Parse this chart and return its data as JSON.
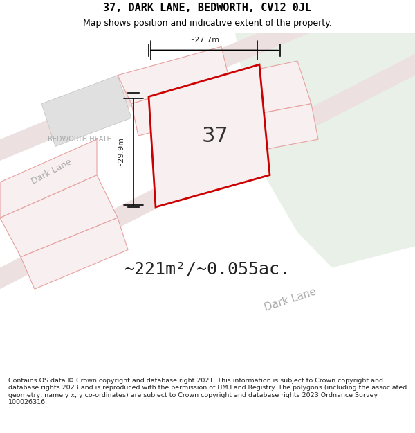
{
  "title_line1": "37, DARK LANE, BEDWORTH, CV12 0JL",
  "title_line2": "Map shows position and indicative extent of the property.",
  "area_text": "~221m²/~0.055ac.",
  "label_37": "37",
  "label_width": "~27.7m",
  "label_height": "~29.9m",
  "label_dark_lane_diag": "Dark Lane",
  "label_dark_lane_left": "Dark Lane",
  "label_bedworth": "BEDWORTH HEATH",
  "footer_text": "Contains OS data © Crown copyright and database right 2021. This information is subject to Crown copyright and database rights 2023 and is reproduced with the permission of HM Land Registry. The polygons (including the associated geometry, namely x, y co-ordinates) are subject to Crown copyright and database rights 2023 Ordnance Survey 100026316.",
  "bg_color": "#f5f5f0",
  "bg_color_green": "#e8f0e8",
  "plot_outline_color": "#cc0000",
  "bg_road_color": "#f0e8e8",
  "light_grey": "#d0d0d0"
}
